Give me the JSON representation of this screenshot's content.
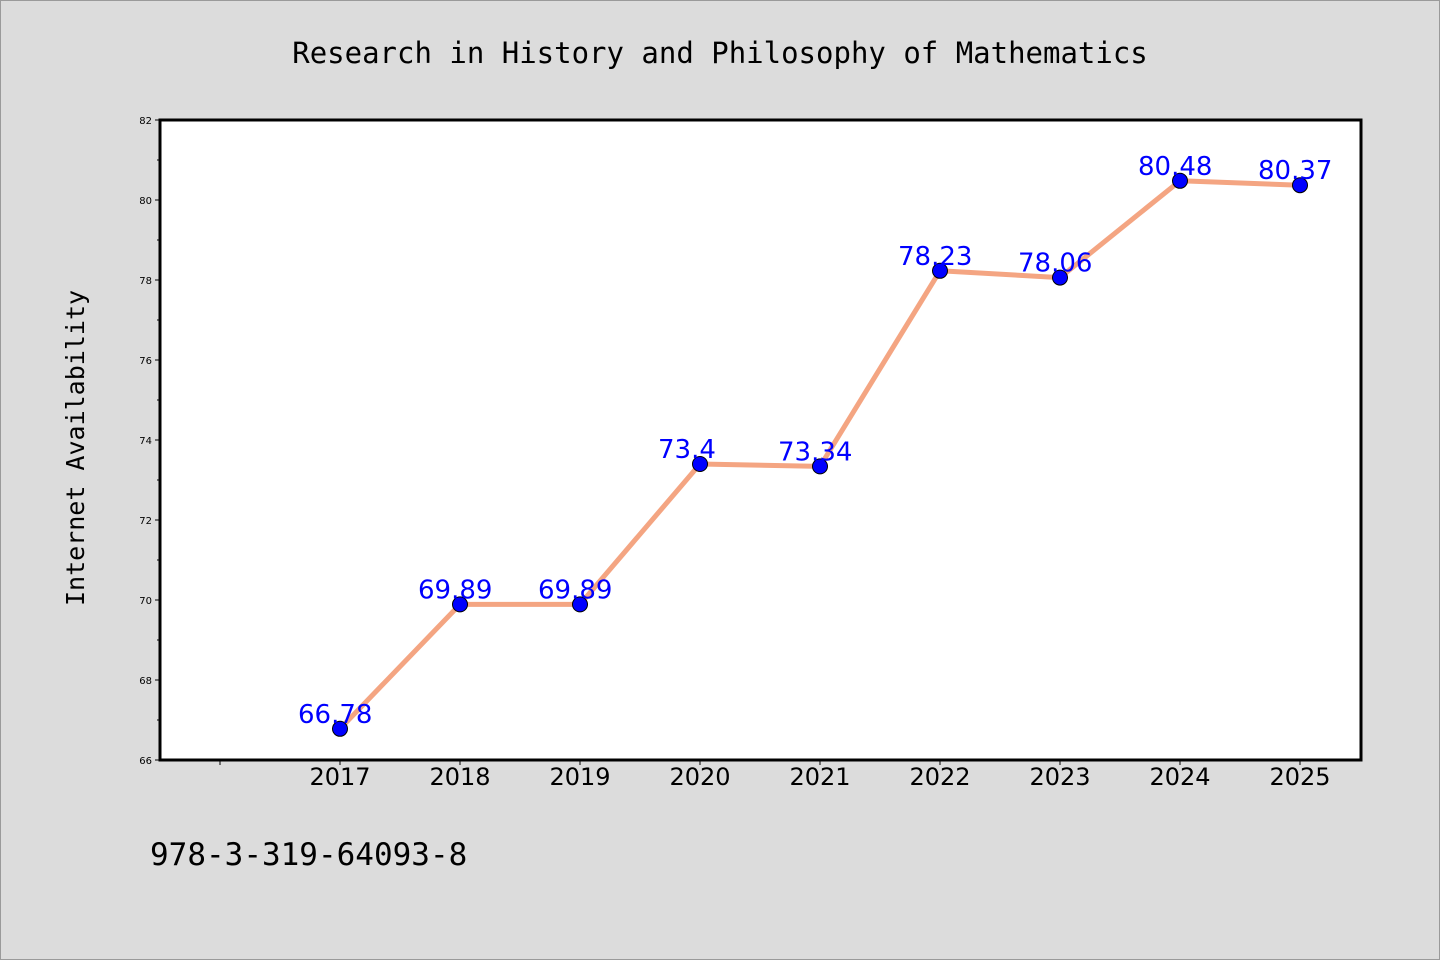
{
  "chart_data": {
    "type": "line",
    "title": "Research in History and Philosophy of Mathematics",
    "xlabel": "",
    "ylabel": "Internet Availability",
    "categories": [
      "2017",
      "2018",
      "2019",
      "2020",
      "2021",
      "2022",
      "2023",
      "2024",
      "2025"
    ],
    "series": [
      {
        "values": [
          66.78,
          69.89,
          69.89,
          73.4,
          73.34,
          78.23,
          78.06,
          80.48,
          80.37
        ],
        "labels": [
          "66.78",
          "69.89",
          "69.89",
          "73.4",
          "73.34",
          "78.23",
          "78.06",
          "80.48",
          "80.37"
        ]
      }
    ],
    "ylim": [
      66,
      82
    ],
    "yticks": [
      "66",
      "68",
      "70",
      "72",
      "74",
      "76",
      "78",
      "80",
      "82"
    ],
    "grid": false,
    "legend": "none",
    "colors": {
      "line": "#f4a582",
      "marker": "#0000ff",
      "label": "#0000ff",
      "background": "#dcdcdc",
      "plot_area": "#ffffff"
    }
  },
  "footer": {
    "isbn": "978-3-319-64093-8"
  }
}
